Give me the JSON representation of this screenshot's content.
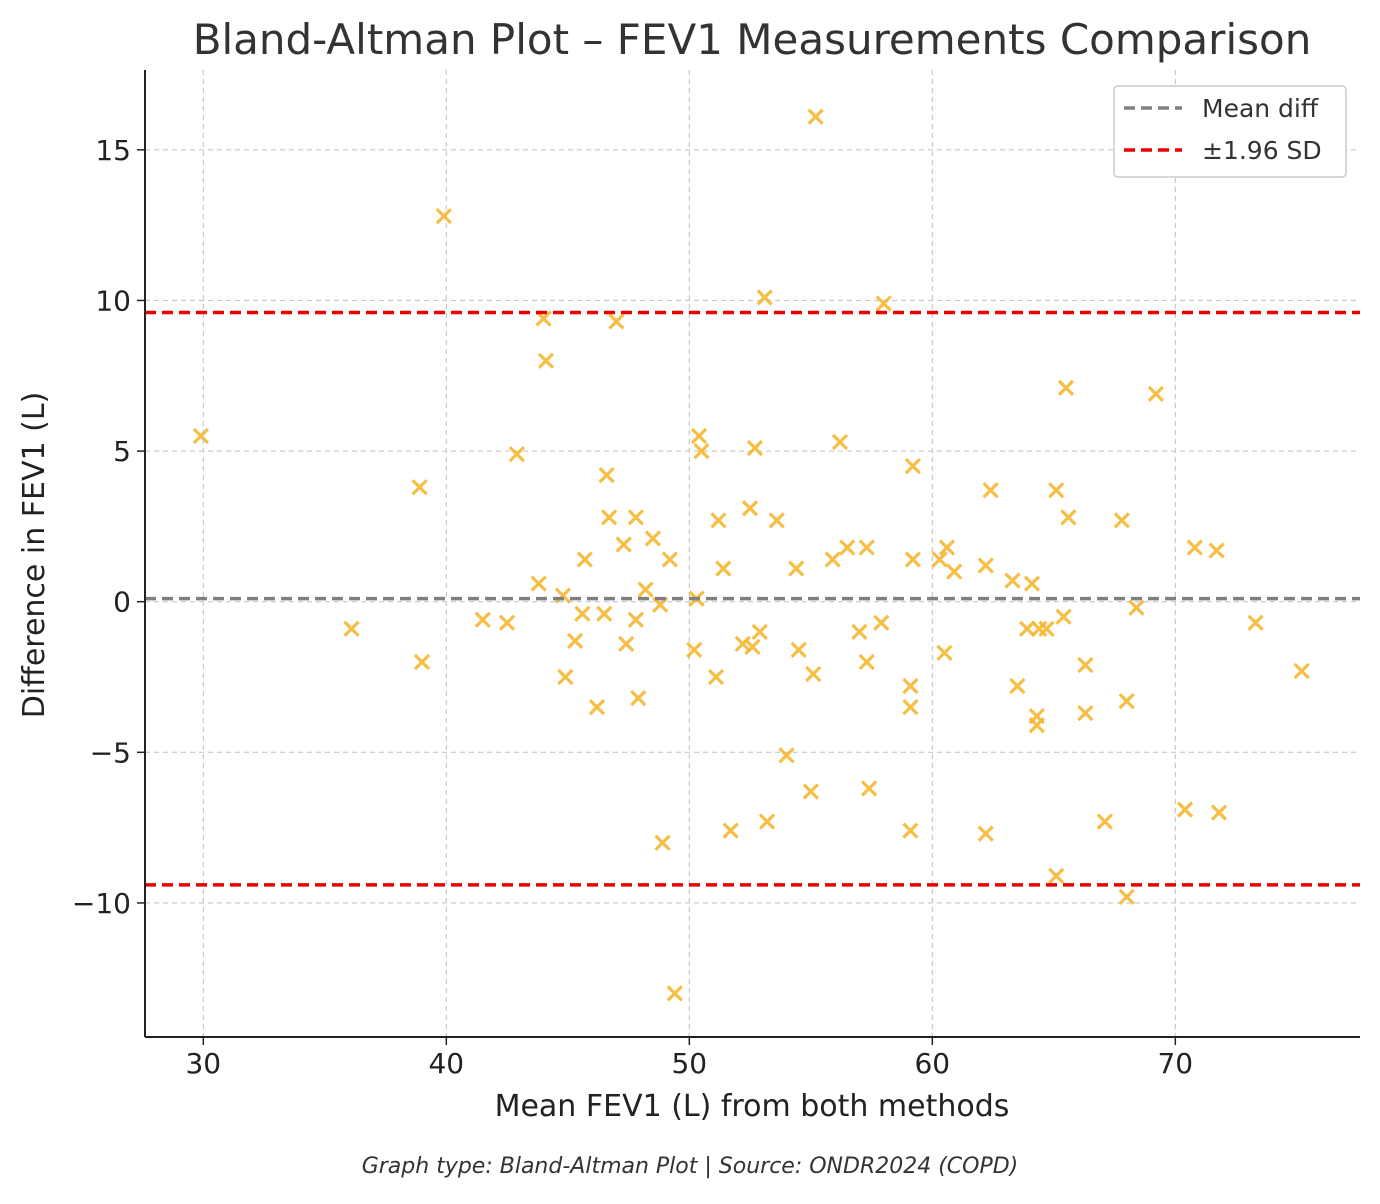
{
  "chart_data": {
    "type": "scatter",
    "title": "Bland-Altman Plot – FEV1 Measurements Comparison",
    "xlabel": "Mean FEV1 (L) from both methods",
    "ylabel": "Difference in FEV1 (L)",
    "xlim": [
      27.6,
      77.6
    ],
    "ylim": [
      -14.45,
      17.65
    ],
    "x_ticks": [
      30,
      40,
      50,
      60,
      70
    ],
    "x_tick_labels": [
      "30",
      "40",
      "50",
      "60",
      "70"
    ],
    "y_ticks": [
      -10,
      -5,
      0,
      5,
      10,
      15
    ],
    "y_tick_labels": [
      "−10",
      "−5",
      "0",
      "5",
      "10",
      "15"
    ],
    "grid": true,
    "legend_position": "top-right",
    "mean_diff": 0.1,
    "upper_loa": 9.6,
    "lower_loa": -9.4,
    "lines": [
      {
        "name": "Mean diff",
        "color": "#808080",
        "style": "dashed"
      },
      {
        "name": "±1.96 SD",
        "color": "#ee0000",
        "style": "dashed"
      }
    ],
    "point_color": "#f5b324",
    "marker": "x",
    "x": [
      29.9,
      36.1,
      38.9,
      39.0,
      39.9,
      41.5,
      42.5,
      42.9,
      43.8,
      44.0,
      44.1,
      44.8,
      44.9,
      45.3,
      45.6,
      45.7,
      46.2,
      46.5,
      46.6,
      46.7,
      47.0,
      47.3,
      47.4,
      47.8,
      47.8,
      47.9,
      48.2,
      48.5,
      48.8,
      49.2,
      49.4,
      48.9,
      50.2,
      50.3,
      50.4,
      50.5,
      51.1,
      51.2,
      51.4,
      51.7,
      52.2,
      52.5,
      52.6,
      52.7,
      52.9,
      53.1,
      53.2,
      53.6,
      54.0,
      54.4,
      54.5,
      55.0,
      55.1,
      55.2,
      55.9,
      56.2,
      56.5,
      57.0,
      57.3,
      57.3,
      57.4,
      57.9,
      58.0,
      59.1,
      59.1,
      59.1,
      59.2,
      59.2,
      60.3,
      60.5,
      60.6,
      60.9,
      62.2,
      62.2,
      62.4,
      63.3,
      63.5,
      63.9,
      64.1,
      64.3,
      64.3,
      64.4,
      64.7,
      65.1,
      65.1,
      65.4,
      65.5,
      65.6,
      66.3,
      66.3,
      67.1,
      67.8,
      68.0,
      68.0,
      68.4,
      69.2,
      70.4,
      70.8,
      71.7,
      71.8,
      73.3,
      75.2
    ],
    "y": [
      5.5,
      -0.9,
      3.8,
      -2.0,
      12.8,
      -0.6,
      -0.7,
      4.9,
      0.6,
      9.4,
      8.0,
      0.2,
      -2.5,
      -1.3,
      -0.4,
      1.4,
      -3.5,
      -0.4,
      4.2,
      2.8,
      9.3,
      1.9,
      -1.4,
      2.8,
      -0.6,
      -3.2,
      0.4,
      2.1,
      -0.1,
      1.4,
      -13.0,
      -8.0,
      -1.6,
      0.1,
      5.5,
      5.0,
      -2.5,
      2.7,
      1.1,
      -7.6,
      -1.4,
      3.1,
      -1.5,
      5.1,
      -1.0,
      10.1,
      -7.3,
      2.7,
      -5.1,
      1.1,
      -1.6,
      -6.3,
      -2.4,
      16.1,
      1.4,
      5.3,
      1.8,
      -1.0,
      1.8,
      -2.0,
      -6.2,
      -0.7,
      9.9,
      -2.8,
      -3.5,
      -7.6,
      4.5,
      1.4,
      1.4,
      -1.7,
      1.8,
      1.0,
      1.2,
      -7.7,
      3.7,
      0.7,
      -2.8,
      -0.9,
      0.6,
      -4.1,
      -3.8,
      -0.9,
      -0.9,
      3.7,
      -9.1,
      -0.5,
      7.1,
      2.8,
      -2.1,
      -3.7,
      -7.3,
      2.7,
      -9.8,
      -3.3,
      -0.2,
      6.9,
      -6.9,
      1.8,
      1.7,
      -7.0,
      -0.7,
      -2.3
    ]
  },
  "caption": "Graph type: Bland-Altman Plot | Source: ONDR2024 (COPD)"
}
